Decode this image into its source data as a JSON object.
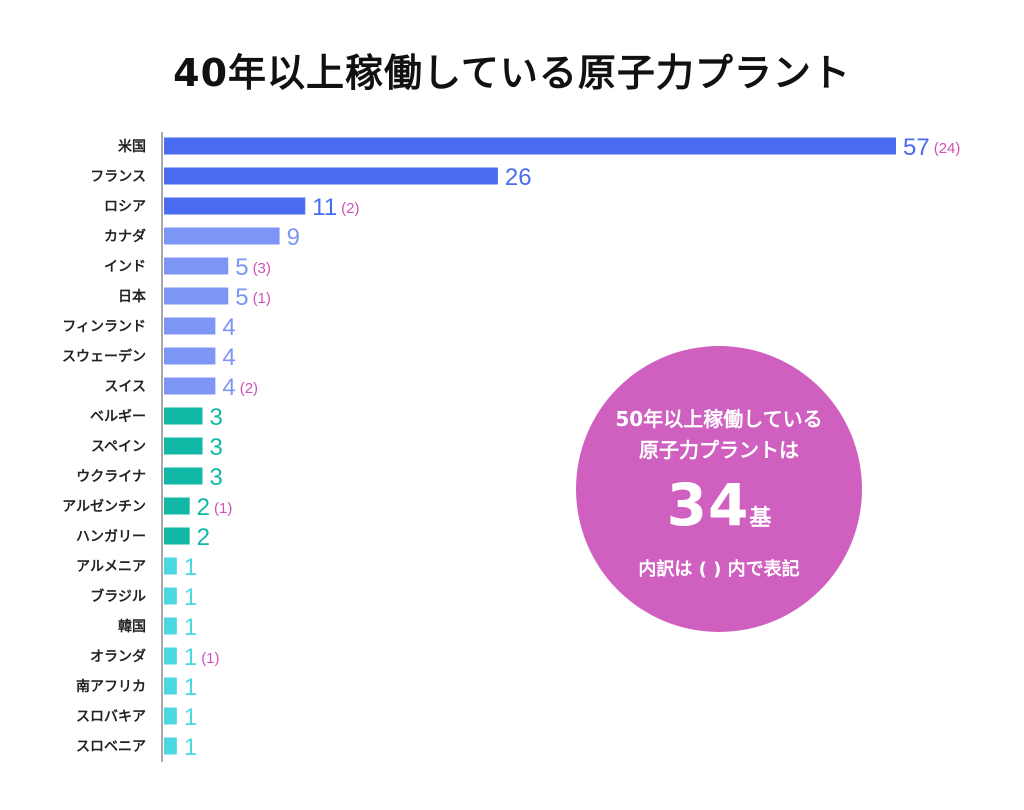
{
  "chart_data": {
    "type": "bar",
    "orientation": "horizontal",
    "title": "40年以上稼働している原子力プラント",
    "categories": [
      "米国",
      "フランス",
      "ロシア",
      "カナダ",
      "インド",
      "日本",
      "フィンランド",
      "スウェーデン",
      "スイス",
      "ベルギー",
      "スペイン",
      "ウクライナ",
      "アルゼンチン",
      "ハンガリー",
      "アルメニア",
      "ブラジル",
      "韓国",
      "オランダ",
      "南アフリカ",
      "スロバキア",
      "スロベニア"
    ],
    "values": [
      57,
      26,
      11,
      9,
      5,
      5,
      4,
      4,
      4,
      3,
      3,
      3,
      2,
      2,
      1,
      1,
      1,
      1,
      1,
      1,
      1
    ],
    "subvalues": [
      "(24)",
      "",
      "(2)",
      "",
      "(3)",
      "(1)",
      "",
      "",
      "(2)",
      "",
      "",
      "",
      "(1)",
      "",
      "",
      "",
      "",
      "(1)",
      "",
      "",
      ""
    ],
    "xlim": [
      0,
      57
    ],
    "grid": false,
    "legend": "none",
    "colors": {
      "high": "#4a6cf0",
      "mid": "#7d96f6",
      "low": "#12b8a6",
      "single": "#4bd8e0",
      "subvalue": "#d050b8"
    }
  },
  "callout": {
    "line1": "50年以上稼働している",
    "line2": "原子力プラントは",
    "total": "34",
    "unit": "基",
    "note": "内訳は ( ) 内で表記",
    "color": "#d060bf"
  }
}
